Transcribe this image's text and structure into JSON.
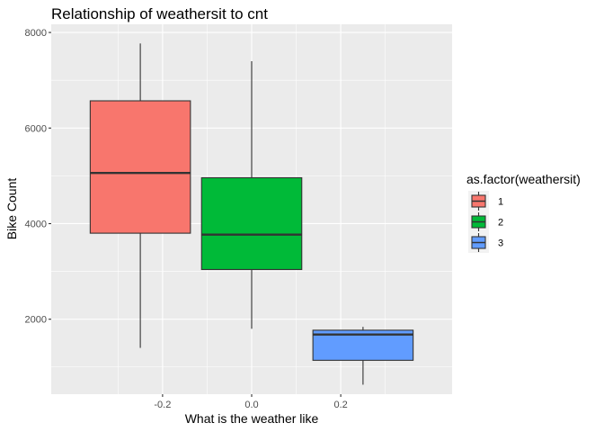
{
  "chart_data": {
    "type": "boxplot",
    "title": "Relationship of weathersit to cnt",
    "xlabel": "What is the weather like",
    "ylabel": "Bike Count",
    "xlim": [
      -0.45,
      0.45
    ],
    "ylim": [
      431,
      8171
    ],
    "x_ticks": [
      -0.2,
      0.0,
      0.2
    ],
    "x_tick_labels": [
      "-0.2",
      "0.0",
      "0.2"
    ],
    "y_ticks": [
      2000,
      4000,
      6000,
      8000
    ],
    "y_tick_labels": [
      "2000",
      "4000",
      "6000",
      "8000"
    ],
    "grid": true,
    "legend_title": "as.factor(weathersit)",
    "legend_position": "right",
    "series": [
      {
        "name": "1",
        "color": "#F8766D",
        "x_center": -0.25,
        "width": 0.225,
        "min": 1400,
        "q1": 3800,
        "median": 5060,
        "q3": 6570,
        "max": 7770
      },
      {
        "name": "2",
        "color": "#00BA38",
        "x_center": 0.0,
        "width": 0.225,
        "min": 1800,
        "q1": 3040,
        "median": 3770,
        "q3": 4960,
        "max": 7400
      },
      {
        "name": "3",
        "color": "#619CFF",
        "x_center": 0.25,
        "width": 0.225,
        "min": 630,
        "q1": 1140,
        "median": 1680,
        "q3": 1770,
        "max": 1840
      }
    ]
  }
}
